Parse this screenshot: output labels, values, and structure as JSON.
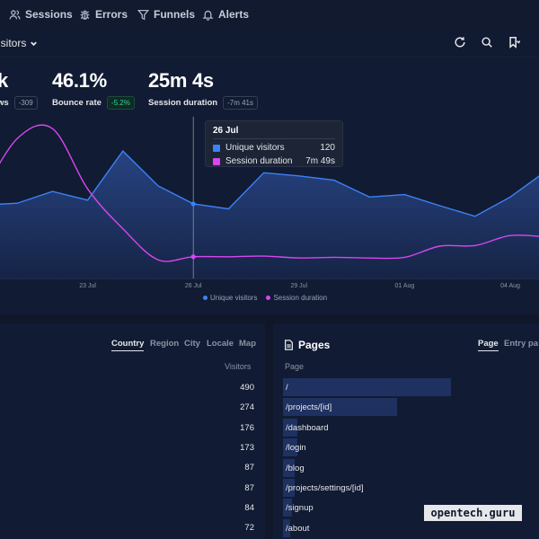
{
  "nav": {
    "items": [
      {
        "label": "Sessions",
        "icon": "users-icon"
      },
      {
        "label": "Errors",
        "icon": "bug-icon"
      },
      {
        "label": "Funnels",
        "icon": "filter-icon"
      },
      {
        "label": "Alerts",
        "icon": "bell-icon"
      }
    ]
  },
  "toolbar": {
    "metric_label": "isitors"
  },
  "kpis": [
    {
      "value": "k",
      "label": "ws",
      "badge": "-309",
      "badge_kind": "neutral"
    },
    {
      "value": "46.1%",
      "label": "Bounce rate",
      "badge": "-5.2%",
      "badge_kind": "good"
    },
    {
      "value": "25m 4s",
      "label": "Session duration",
      "badge": "-7m 41s",
      "badge_kind": "neutral"
    }
  ],
  "tooltip": {
    "title": "26 Jul",
    "rows": [
      {
        "label": "Unique visitors",
        "value": "120",
        "color": "#3b82f6"
      },
      {
        "label": "Session duration",
        "value": "7m 49s",
        "color": "#d946ef"
      }
    ]
  },
  "chart_data": {
    "type": "line",
    "categories": [
      "20 Jul",
      "21 Jul",
      "22 Jul",
      "23 Jul",
      "24 Jul",
      "25 Jul",
      "26 Jul",
      "27 Jul",
      "28 Jul",
      "29 Jul",
      "30 Jul",
      "31 Jul",
      "01 Aug",
      "02 Aug",
      "03 Aug",
      "04 Aug",
      "05 Aug"
    ],
    "tick_labels": [
      "23 Jul",
      "26 Jul",
      "29 Jul",
      "01 Aug",
      "04 Aug"
    ],
    "series": [
      {
        "name": "Unique visitors",
        "color": "#3b82f6",
        "values": [
          118,
          121,
          140,
          126,
          205,
          149,
          120,
          112,
          170,
          165,
          158,
          131,
          135,
          117,
          100,
          131,
          172
        ]
      },
      {
        "name": "Session duration",
        "color": "#d946ef",
        "values": [
          135,
          225,
          241,
          144,
          80,
          30,
          35,
          35,
          36,
          33,
          34,
          33,
          34,
          52,
          53,
          69,
          67
        ]
      }
    ]
  },
  "legend": [
    "Unique visitors",
    "Session duration"
  ],
  "locations": {
    "tabs": [
      "Country",
      "Region",
      "City",
      "Locale",
      "Map"
    ],
    "active_tab": "Country",
    "column": "Visitors",
    "values": [
      "490",
      "274",
      "176",
      "173",
      "87",
      "87",
      "84",
      "72"
    ]
  },
  "pages": {
    "title": "Pages",
    "tabs": [
      "Page",
      "Entry pa"
    ],
    "column": "Page",
    "rows": [
      {
        "path": "/",
        "share": 0.72
      },
      {
        "path": "/projects/[id]",
        "share": 0.49
      },
      {
        "path": "/dashboard",
        "share": 0.06
      },
      {
        "path": "/login",
        "share": 0.06
      },
      {
        "path": "/blog",
        "share": 0.05
      },
      {
        "path": "/projects/settings/[id]",
        "share": 0.05
      },
      {
        "path": "/signup",
        "share": 0.04
      },
      {
        "path": "/about",
        "share": 0.03
      }
    ]
  },
  "watermark": "opentech.guru"
}
